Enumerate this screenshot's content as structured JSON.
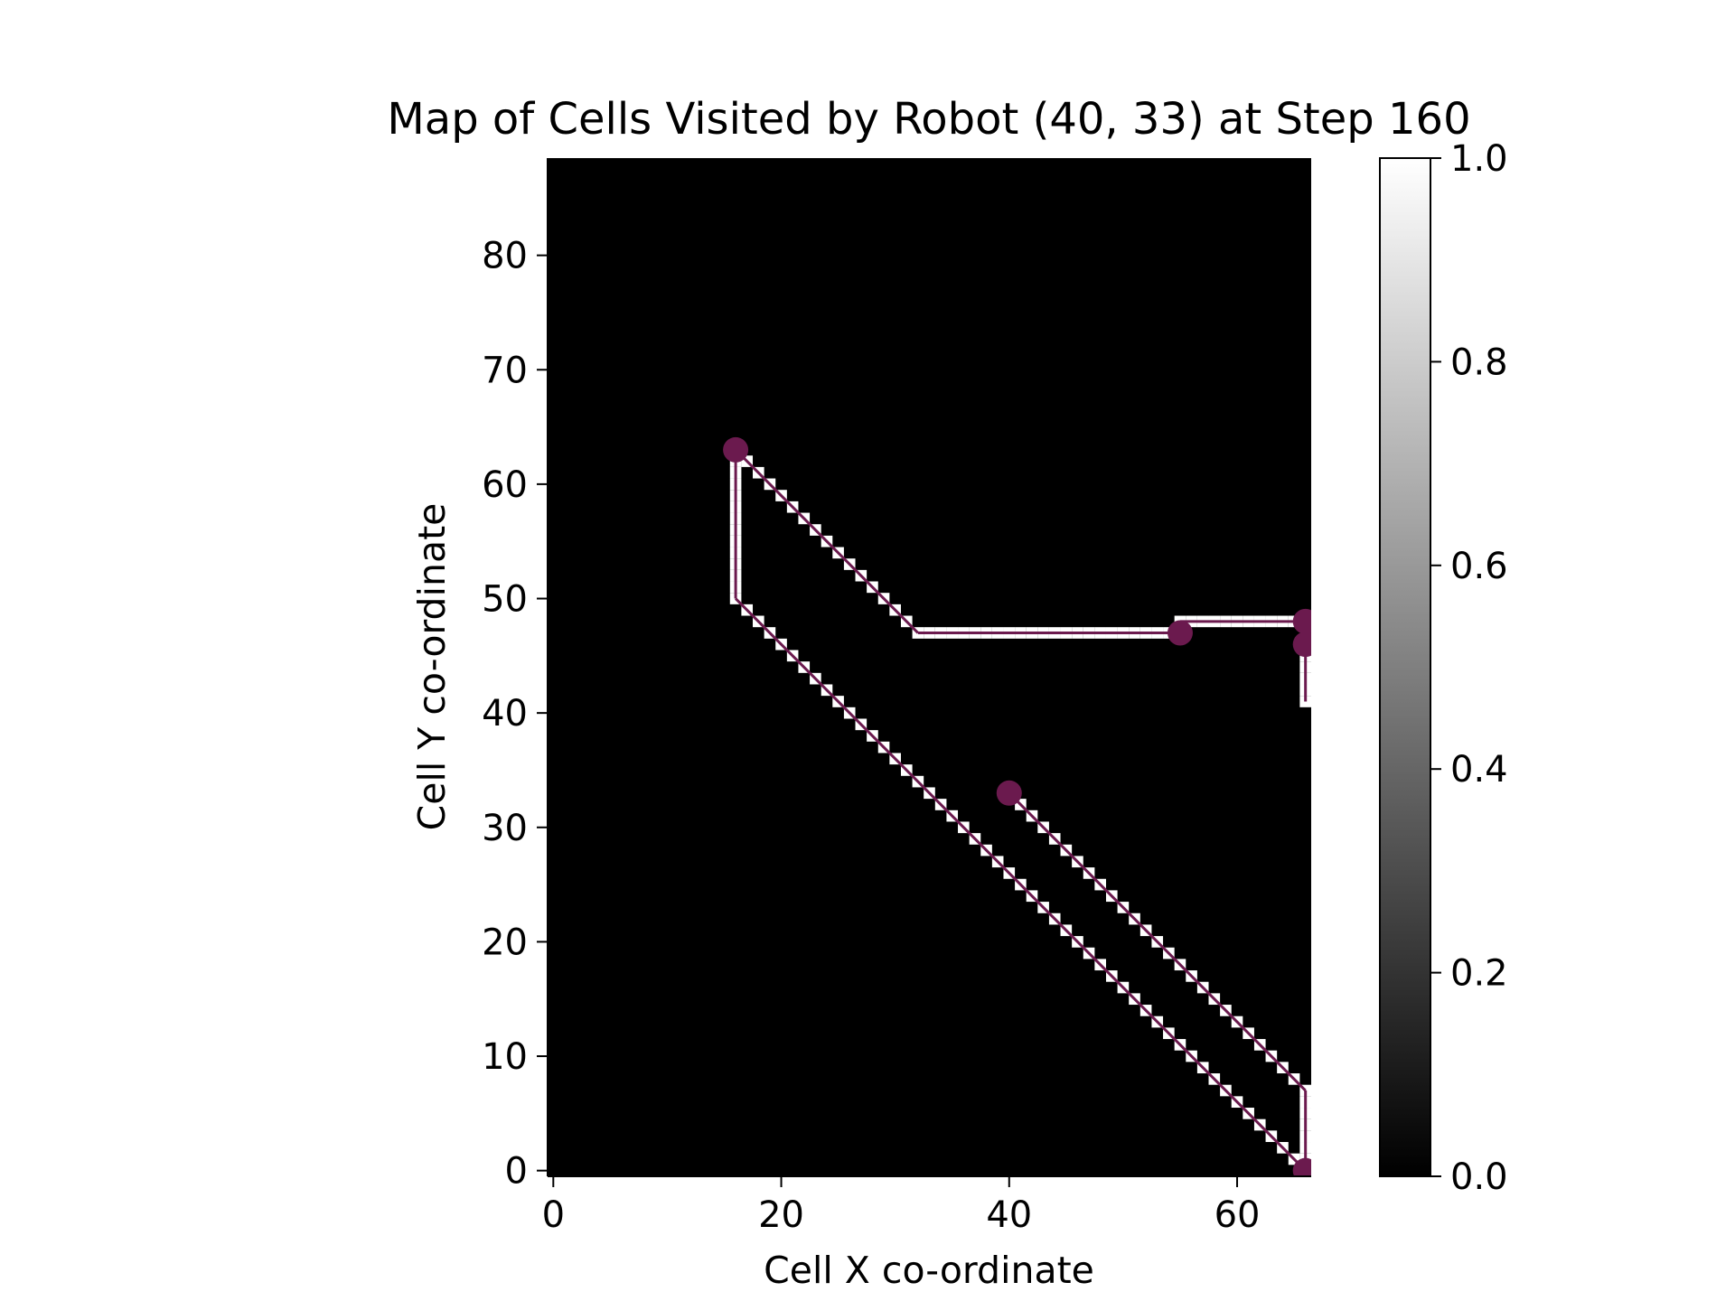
{
  "chart_data": {
    "type": "heatmap",
    "title": "Map of Cells Visited by Robot (40, 33) at Step 160",
    "xlabel": "Cell X co-ordinate",
    "ylabel": "Cell Y co-ordinate",
    "xlim": [
      -0.5,
      66.5
    ],
    "ylim": [
      -0.5,
      88.5
    ],
    "xticks": [
      0,
      20,
      40,
      60
    ],
    "yticks": [
      0,
      10,
      20,
      30,
      40,
      50,
      60,
      70,
      80
    ],
    "colormap": "gray",
    "colorbar": {
      "min": 0.0,
      "max": 1.0,
      "ticks": [
        0.0,
        0.2,
        0.4,
        0.6,
        0.8,
        1.0
      ],
      "tick_labels": [
        "0.0",
        "0.2",
        "0.4",
        "0.6",
        "0.8",
        "1.0"
      ]
    },
    "visited_value": 1.0,
    "background_value": 0.0,
    "path_segments": [
      {
        "from": [
          40,
          33
        ],
        "to": [
          66,
          7
        ],
        "step": "diagonal"
      },
      {
        "from": [
          66,
          7
        ],
        "to": [
          66,
          0
        ],
        "step": "vertical"
      },
      {
        "from": [
          66,
          0
        ],
        "to": [
          16,
          50
        ],
        "step": "diagonal"
      },
      {
        "from": [
          16,
          50
        ],
        "to": [
          16,
          63
        ],
        "step": "vertical"
      },
      {
        "from": [
          16,
          63
        ],
        "to": [
          32,
          47
        ],
        "step": "diagonal"
      },
      {
        "from": [
          32,
          47
        ],
        "to": [
          55,
          47
        ],
        "step": "horizontal"
      },
      {
        "from": [
          55,
          48
        ],
        "to": [
          66,
          48
        ],
        "step": "horizontal"
      },
      {
        "from": [
          66,
          46
        ],
        "to": [
          66,
          41
        ],
        "step": "vertical"
      }
    ],
    "markers": {
      "color": "#6b1a4e",
      "points": [
        {
          "x": 40,
          "y": 33
        },
        {
          "x": 16,
          "y": 63
        },
        {
          "x": 55,
          "y": 47
        },
        {
          "x": 66,
          "y": 48
        },
        {
          "x": 66,
          "y": 46
        },
        {
          "x": 66,
          "y": 0
        }
      ]
    },
    "path_line_color": "#6b1a4e"
  }
}
